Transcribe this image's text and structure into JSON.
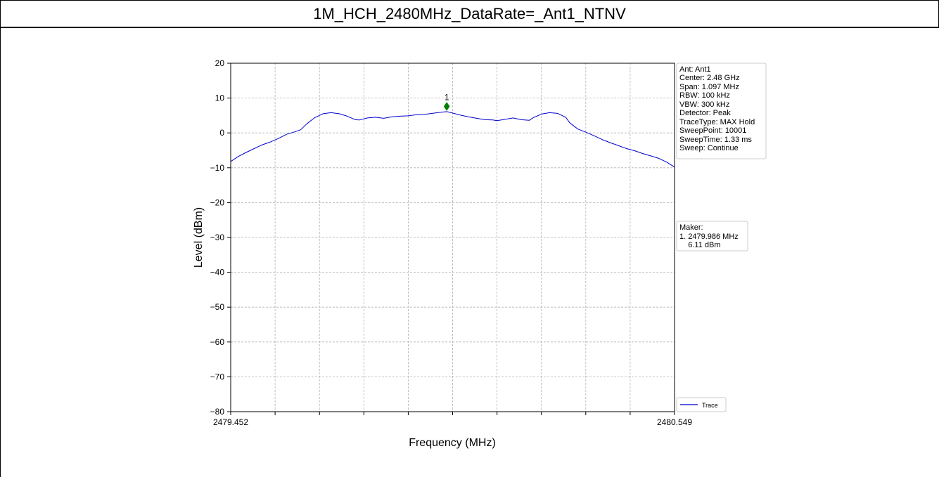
{
  "page_title": "1M_HCH_2480MHz_DataRate=_Ant1_NTNV",
  "chart_data": {
    "type": "line",
    "title": "",
    "xlabel": "Frequency (MHz)",
    "ylabel": "Level (dBm)",
    "xlim": [
      2479.452,
      2480.549
    ],
    "ylim": [
      -80,
      20
    ],
    "x_tick_labels": [
      "2479.452",
      "2480.549"
    ],
    "y_ticks": [
      20,
      10,
      0,
      -10,
      -20,
      -30,
      -40,
      -50,
      -60,
      -70,
      -80
    ],
    "y_tick_labels": [
      "20",
      "10",
      "0",
      "−10",
      "−20",
      "−30",
      "−40",
      "−50",
      "−60",
      "−70",
      "−80"
    ],
    "x_minor_divisions": 10,
    "grid": true,
    "legend_position": "bottom-right",
    "series": [
      {
        "name": "Trace",
        "color": "#0000cc",
        "x": [
          2479.452,
          2479.47,
          2479.49,
          2479.51,
          2479.53,
          2479.55,
          2479.57,
          2479.59,
          2479.61,
          2479.625,
          2479.64,
          2479.66,
          2479.68,
          2479.7,
          2479.72,
          2479.74,
          2479.76,
          2479.77,
          2479.79,
          2479.81,
          2479.83,
          2479.85,
          2479.87,
          2479.89,
          2479.91,
          2479.93,
          2479.95,
          2479.97,
          2479.986,
          2480.0,
          2480.02,
          2480.04,
          2480.06,
          2480.08,
          2480.1,
          2480.11,
          2480.13,
          2480.15,
          2480.17,
          2480.19,
          2480.2,
          2480.22,
          2480.24,
          2480.26,
          2480.28,
          2480.29,
          2480.31,
          2480.33,
          2480.35,
          2480.37,
          2480.39,
          2480.41,
          2480.43,
          2480.45,
          2480.47,
          2480.49,
          2480.51,
          2480.53,
          2480.549
        ],
        "y": [
          -8.2,
          -6.8,
          -5.6,
          -4.5,
          -3.4,
          -2.6,
          -1.6,
          -0.4,
          0.3,
          0.9,
          2.6,
          4.4,
          5.5,
          5.8,
          5.5,
          4.8,
          3.8,
          3.7,
          4.3,
          4.5,
          4.2,
          4.6,
          4.8,
          4.9,
          5.2,
          5.3,
          5.6,
          5.9,
          6.1,
          5.7,
          5.1,
          4.6,
          4.2,
          3.8,
          3.7,
          3.5,
          3.9,
          4.3,
          3.8,
          3.6,
          4.4,
          5.4,
          5.8,
          5.6,
          4.5,
          2.9,
          1.1,
          0.2,
          -0.8,
          -1.9,
          -2.8,
          -3.6,
          -4.5,
          -5.1,
          -5.9,
          -6.6,
          -7.3,
          -8.4,
          -9.8
        ]
      }
    ],
    "markers": [
      {
        "label": "1",
        "x": 2479.986,
        "y": 7.6,
        "color": "#008000"
      }
    ]
  },
  "info_box": {
    "lines": [
      "Ant: Ant1",
      "Center: 2.48 GHz",
      "Span: 1.097 MHz",
      "RBW: 100 kHz",
      "VBW: 300 kHz",
      "Detector: Peak",
      "TraceType: MAX Hold",
      "SweepPoint: 10001",
      "SweepTime: 1.33 ms",
      "Sweep: Continue"
    ]
  },
  "marker_box": {
    "lines": [
      "Maker:",
      "1. 2479.986 MHz",
      "    6.11 dBm"
    ]
  },
  "legend": {
    "label": "Trace"
  }
}
